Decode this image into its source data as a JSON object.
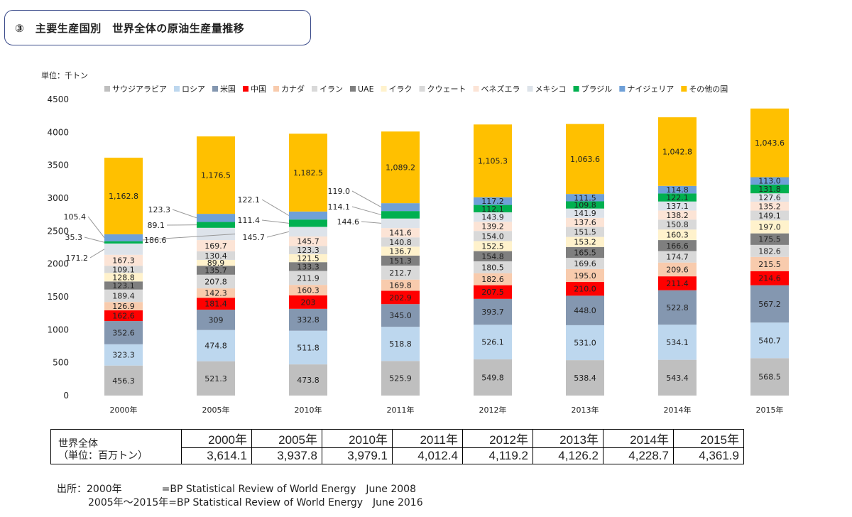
{
  "title": "③　主要生産国別　世界全体の原油生産量推移",
  "chart_data": {
    "type": "bar",
    "stacked": true,
    "unit_label": "単位：千トン",
    "categories": [
      "2000年",
      "2005年",
      "2010年",
      "2011年",
      "2012年",
      "2013年",
      "2014年",
      "2015年"
    ],
    "ylim": [
      0,
      4500
    ],
    "yticks": [
      0,
      500,
      1000,
      1500,
      2000,
      2500,
      3000,
      3500,
      4000,
      4500
    ],
    "legend_position": "top",
    "series": [
      {
        "name": "サウジアラビア",
        "color": "#bfbfbf",
        "values": [
          456.3,
          521.3,
          473.8,
          525.9,
          549.8,
          538.4,
          543.4,
          568.5
        ],
        "labels": [
          "456.3",
          "521.3",
          "473.8",
          "525.9",
          "549.8",
          "538.4",
          "543.4",
          "568.5"
        ]
      },
      {
        "name": "ロシア",
        "color": "#bdd7ee",
        "values": [
          323.3,
          474.8,
          511.8,
          518.8,
          526.1,
          531.0,
          534.1,
          540.7
        ],
        "labels": [
          "323.3",
          "474.8",
          "511.8",
          "518.8",
          "526.1",
          "531.0",
          "534.1",
          "540.7"
        ]
      },
      {
        "name": "米国",
        "color": "#8497b0",
        "values": [
          352.6,
          309,
          332.8,
          345.0,
          393.7,
          448.0,
          522.8,
          567.2
        ],
        "labels": [
          "352.6",
          "309",
          "332.8",
          "345.0",
          "393.7",
          "448.0",
          "522.8",
          "567.2"
        ]
      },
      {
        "name": "中国",
        "color": "#ff0000",
        "values": [
          162.6,
          181.4,
          203,
          202.9,
          207.5,
          210.0,
          211.4,
          214.6
        ],
        "labels": [
          "162.6",
          "181.4",
          "203",
          "202.9",
          "207.5",
          "210.0",
          "211.4",
          "214.6"
        ]
      },
      {
        "name": "カナダ",
        "color": "#f8cbad",
        "values": [
          126.9,
          142.3,
          160.3,
          169.8,
          182.6,
          195.0,
          209.6,
          215.5
        ],
        "labels": [
          "126.9",
          "142.3",
          "160.3",
          "169.8",
          "182.6",
          "195.0",
          "209.6",
          "215.5"
        ]
      },
      {
        "name": "イラン",
        "color": "#d9d9d9",
        "values": [
          189.4,
          207.8,
          211.9,
          212.7,
          180.5,
          169.6,
          174.7,
          182.6
        ],
        "labels": [
          "189.4",
          "207.8",
          "211.9",
          "212.7",
          "180.5",
          "169.6",
          "174.7",
          "182.6"
        ]
      },
      {
        "name": "UAE",
        "color": "#7f7f7f",
        "values": [
          123.1,
          135.7,
          133.3,
          151.3,
          154.8,
          165.5,
          166.6,
          175.5
        ],
        "labels": [
          "123.1",
          "135.7",
          "133.3",
          "151.3",
          "154.8",
          "165.5",
          "166.6",
          "175.5"
        ]
      },
      {
        "name": "イラク",
        "color": "#fff2cc",
        "values": [
          128.8,
          89.9,
          121.5,
          136.7,
          152.5,
          153.2,
          160.3,
          197.0
        ],
        "labels": [
          "128.8",
          "89.9",
          "121.5",
          "136.7",
          "152.5",
          "153.2",
          "160.3",
          "197.0"
        ]
      },
      {
        "name": "クウェート",
        "color": "#d9d9d9",
        "values": [
          109.1,
          130.4,
          123.3,
          140.8,
          154.0,
          151.5,
          150.8,
          149.1
        ],
        "labels": [
          "109.1",
          "130.4",
          "123.3",
          "140.8",
          "154.0",
          "151.5",
          "150.8",
          "149.1"
        ]
      },
      {
        "name": "ベネズエラ",
        "color": "#fce4d6",
        "values": [
          167.3,
          169.7,
          145.7,
          141.6,
          139.2,
          137.6,
          138.2,
          135.2
        ],
        "labels": [
          "167.3",
          "169.7",
          "145.7",
          "141.6",
          "139.2",
          "137.6",
          "138.2",
          "135.2"
        ]
      },
      {
        "name": "メキシコ",
        "color": "#dde3ea",
        "values": [
          171.2,
          186.6,
          145.7,
          144.6,
          143.9,
          141.9,
          137.1,
          127.6
        ],
        "labels": [
          "171.2",
          "186.6",
          "145.7",
          "144.6",
          "143.9",
          "141.9",
          "137.1",
          "127.6"
        ]
      },
      {
        "name": "ブラジル",
        "color": "#00b050",
        "values": [
          35.3,
          89.1,
          111.4,
          114.1,
          112.1,
          109.8,
          122.1,
          131.8
        ],
        "labels": [
          "35.3",
          "89.1",
          "111.4",
          "114.1",
          "112.1",
          "109.8",
          "122.1",
          "131.8"
        ]
      },
      {
        "name": "ナイジェリア",
        "color": "#6fa0d8",
        "values": [
          105.4,
          123.3,
          122.1,
          119.0,
          117.2,
          111.5,
          114.8,
          113.0
        ],
        "labels": [
          "105.4",
          "123.3",
          "122.1",
          "119.0",
          "117.2",
          "111.5",
          "114.8",
          "113.0"
        ]
      },
      {
        "name": "その他の国",
        "color": "#ffc000",
        "values": [
          1162.8,
          1176.5,
          1182.5,
          1089.2,
          1105.3,
          1063.6,
          1042.8,
          1043.6
        ],
        "labels": [
          "1,162.8",
          "1,176.5",
          "1,182.5",
          "1,089.2",
          "1,105.3",
          "1,063.6",
          "1,042.8",
          "1,043.6"
        ]
      }
    ]
  },
  "summary_table": {
    "row_label": "世界全体",
    "row_unit": "（単位：百万トン）",
    "years": [
      "2000年",
      "2005年",
      "2010年",
      "2011年",
      "2012年",
      "2013年",
      "2014年",
      "2015年"
    ],
    "totals": [
      "3,614.1",
      "3,937.8",
      "3,979.1",
      "4,012.4",
      "4,119.2",
      "4,126.2",
      "4,228.7",
      "4,361.9"
    ]
  },
  "source": {
    "line1": "出所：2000年　　　　=BP Statistical Review of World Energy　June 2008",
    "line2": "2005年〜2015年=BP Statistical Review of World Energy　June 2016"
  }
}
